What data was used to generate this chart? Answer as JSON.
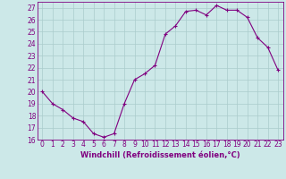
{
  "x": [
    0,
    1,
    2,
    3,
    4,
    5,
    6,
    7,
    8,
    9,
    10,
    11,
    12,
    13,
    14,
    15,
    16,
    17,
    18,
    19,
    20,
    21,
    22,
    23
  ],
  "y": [
    20.0,
    19.0,
    18.5,
    17.8,
    17.5,
    16.5,
    16.2,
    16.5,
    19.0,
    21.0,
    21.5,
    22.2,
    24.8,
    25.5,
    26.7,
    26.8,
    26.4,
    27.2,
    26.8,
    26.8,
    26.2,
    24.5,
    23.7,
    21.8
  ],
  "line_color": "#800080",
  "marker": "+",
  "marker_size": 3,
  "bg_color": "#cce8e8",
  "grid_color": "#aacccc",
  "xlabel": "Windchill (Refroidissement éolien,°C)",
  "xlabel_fontsize": 6.0,
  "tick_fontsize": 5.5,
  "ylim": [
    16,
    27.5
  ],
  "yticks": [
    16,
    17,
    18,
    19,
    20,
    21,
    22,
    23,
    24,
    25,
    26,
    27
  ],
  "xticks": [
    0,
    1,
    2,
    3,
    4,
    5,
    6,
    7,
    8,
    9,
    10,
    11,
    12,
    13,
    14,
    15,
    16,
    17,
    18,
    19,
    20,
    21,
    22,
    23
  ],
  "xlim": [
    -0.5,
    23.5
  ]
}
